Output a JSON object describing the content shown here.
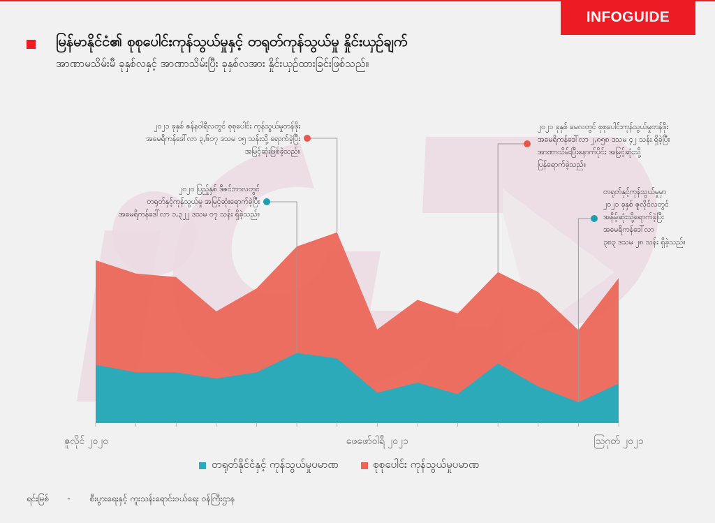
{
  "header": {
    "brand_part1": "INFO",
    "brand_part2": "GUIDE",
    "title": "မြန်မာနိုင်ငံ၏ စုစုပေါင်းကုန်သွယ်မှုနှင့် တရုတ်ကုန်သွယ်မှု နှိုင်းယှဉ်ချက်",
    "subtitle": "အာဏာမသိမ်းမီ ခုနှစ်လနှင့် အာဏာသိမ်းပြီး ခုနှစ်လအား နှိုင်းယှဉ်ထားခြင်းဖြစ်သည်။"
  },
  "colors": {
    "brand_red": "#ed1c24",
    "total_trade": "#ec6556",
    "china_trade": "#29abbb",
    "background": "#f1f1f1",
    "watermark": "#ecdae2"
  },
  "annotations": [
    {
      "series": "total",
      "point_index": 6,
      "lines": [
        "၂၀၂၁ ခုနှစ် ဇန်နဝါရီလတွင်  စုစုပေါင်း ကုန်သွယ်မှုတန်ဖိုး",
        "အမေရိကန်ဒေါ်လာ ၃,၆၁၇ ဒသမ ၁၅ သန်းသို့ ရောက်ခဲ့ပြီး",
        "အမြင့်ဆုံးဖြစ်ခဲ့သည်။"
      ]
    },
    {
      "series": "china",
      "point_index": 5,
      "lines": [
        "၂၀၂၀ ပြည့်နှစ် ဒီဇင်ဘာလတွင်",
        "တရုတ်နှင့်ကုန်သွယ်မှု အမြင့်ဆုံးရောက်ခဲ့ပြီး",
        "အမေရိကန်ဒေါ်လာ ၁,၃၂၂ ဒသမ ၀၇ သန်း ရှိခဲ့သည်။"
      ]
    },
    {
      "series": "total",
      "point_index": 10,
      "lines": [
        "၂၀၂၁ ခုနှစ် မေလတွင် စုစုပေါင်းကုန်သွယ်မှုတန်ဖိုး",
        "အမေရိကန်ဒေါ်လာ  ၂,၈၅၈ ဒသမ ၄၂ သန်း ရှိခဲ့ပြီး",
        "အာဏာသိမ်းပြီးနောက်ပိုင်း အမြင့်ဆုံးသို့",
        "ပြန်ရောက်ခဲ့သည်။"
      ]
    },
    {
      "series": "china",
      "point_index": 12,
      "lines": [
        "တရုတ်နှင့်ကုန်သွယ်မှုမှာ",
        "၂၀၂၁ ခုနှစ် ဇူလိုင်လတွင်",
        "အနိမ့်ဆုံးသို့ရောက်ခဲ့ပြီး",
        "အမေရိကန်ဒေါ်လာ",
        "၃၈၃ ဒသမ ၂၈ သန်း ရှိခဲ့သည်။"
      ]
    }
  ],
  "chart_data": {
    "type": "area",
    "title": "မြန်မာနိုင်ငံ၏ စုစုပေါင်းကုန်သွယ်မှုနှင့် တရုတ်ကုန်သွယ်မှု နှိုင်းယှဉ်ချက်",
    "xlabel": "",
    "ylabel": "",
    "unit": "USD million",
    "x": [
      "2020-07",
      "2020-08",
      "2020-09",
      "2020-10",
      "2020-11",
      "2020-12",
      "2021-01",
      "2021-02",
      "2021-03",
      "2021-04",
      "2021-05",
      "2021-06",
      "2021-07",
      "2021-08"
    ],
    "x_tick_labels": [
      {
        "index": 0,
        "label": "ဇူလိုင် ၂၀၂၀"
      },
      {
        "index": 7,
        "label": "ဖေဖော်ဝါရီ ၂၀၂၁"
      },
      {
        "index": 13,
        "label": "ဩဂုတ် ၂၀၂၁"
      }
    ],
    "ylim": [
      0,
      3800
    ],
    "grid": false,
    "legend_position": "bottom",
    "series": [
      {
        "key": "total",
        "name": "စုစုပေါင်း ကုန်သွယ်မှုပမာဏ",
        "values": [
          3085,
          2833,
          2766,
          2112,
          2550,
          3347,
          3617.15,
          1770,
          2333,
          2072,
          2858.42,
          2479,
          1757,
          2745
        ]
      },
      {
        "key": "china",
        "name": "တရုတ်နိုင်ငံနှင့် ကုန်သွယ်မှုပမာဏ",
        "values": [
          1097,
          952,
          952,
          837,
          952,
          1322.07,
          1220,
          564,
          758,
          538,
          1124,
          683,
          383.28,
          740
        ]
      }
    ]
  },
  "legend": {
    "china_label": "တရုတ်နိုင်ငံနှင့် ကုန်သွယ်မှုပမာဏ",
    "total_label": "စုစုပေါင်း ကုန်သွယ်မှုပမာဏ"
  },
  "footer": {
    "source_label": "ရင်းမြစ်",
    "dash": "-",
    "source_text": "စီးပွားရေးနှင့် ကူးသန်းရောင်းဝယ်ရေး ဝန်ကြီးဌာန"
  }
}
